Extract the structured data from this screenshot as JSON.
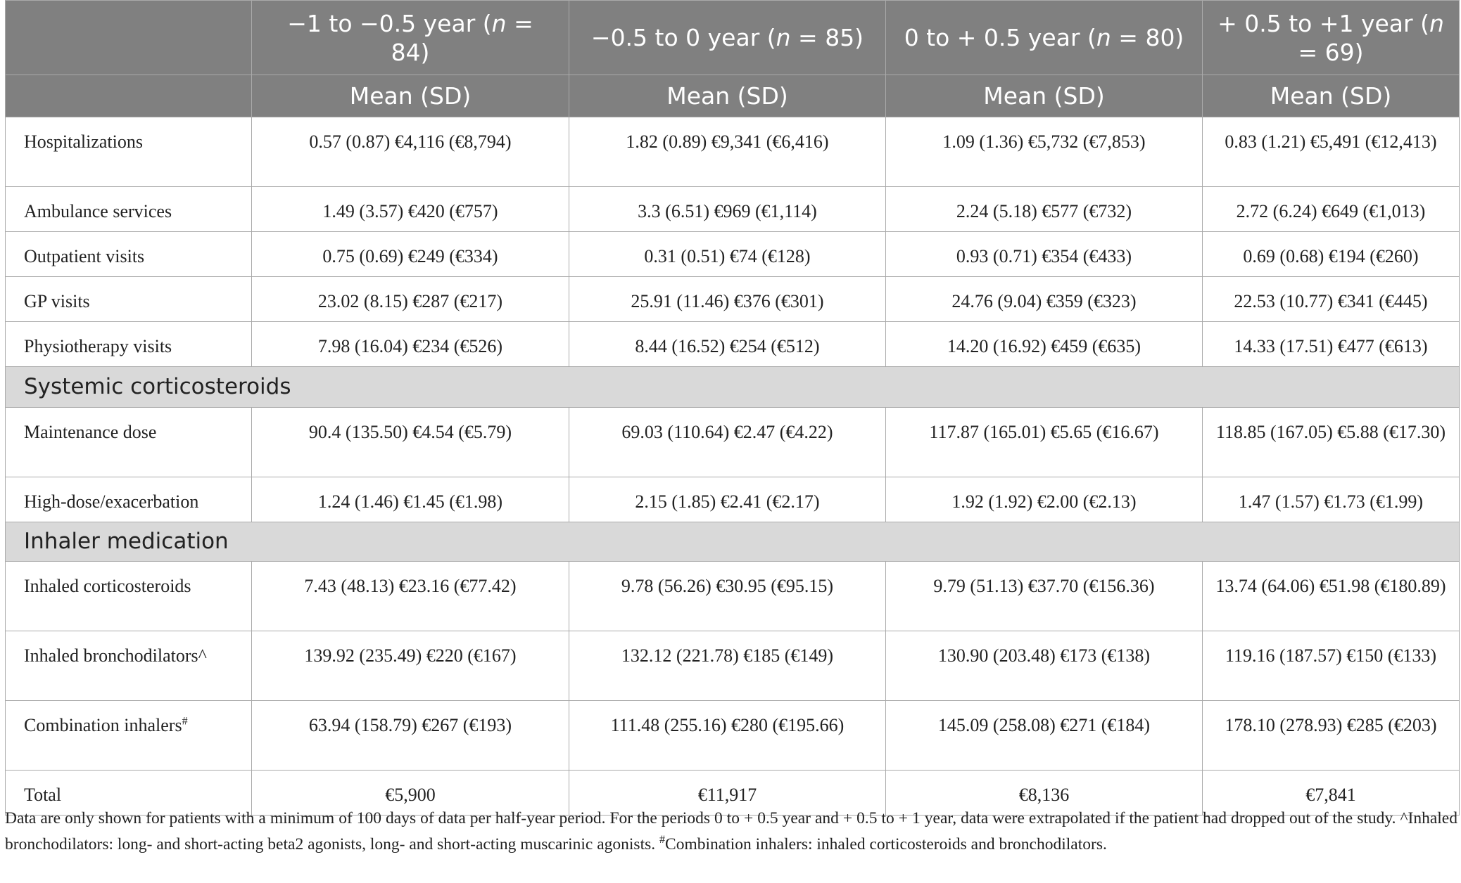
{
  "table": {
    "columns": [
      {
        "heading": [
          "−1 to −0.5 year (",
          "n",
          " = 84)"
        ],
        "sub": "Mean (SD)"
      },
      {
        "heading": [
          "−0.5 to 0 year (",
          "n",
          " = 85)"
        ],
        "sub": "Mean (SD)"
      },
      {
        "heading": [
          "0 to + 0.5 year (",
          "n",
          " = 80)"
        ],
        "sub": "Mean (SD)"
      },
      {
        "heading": [
          "+ 0.5 to +1 year (",
          "n",
          " = 69)"
        ],
        "sub": "Mean (SD)"
      }
    ],
    "rows": [
      {
        "label": "Hospitalizations",
        "cells": [
          "0.57 (0.87) €4,116 (€8,794)",
          "1.82 (0.89) €9,341 (€6,416)",
          "1.09 (1.36) €5,732 (€7,853)",
          "0.83 (1.21) €5,491 (€12,413)"
        ]
      },
      {
        "label": "Ambulance services",
        "cells": [
          "1.49 (3.57) €420 (€757)",
          "3.3 (6.51) €969 (€1,114)",
          "2.24 (5.18) €577 (€732)",
          "2.72 (6.24) €649 (€1,013)"
        ]
      },
      {
        "label": "Outpatient visits",
        "cells": [
          "0.75 (0.69) €249 (€334)",
          "0.31 (0.51) €74 (€128)",
          "0.93 (0.71) €354 (€433)",
          "0.69 (0.68) €194 (€260)"
        ]
      },
      {
        "label": "GP visits",
        "cells": [
          "23.02 (8.15) €287 (€217)",
          "25.91 (11.46) €376 (€301)",
          "24.76 (9.04) €359 (€323)",
          "22.53 (10.77) €341 (€445)"
        ]
      },
      {
        "label": "Physiotherapy visits",
        "cells": [
          "7.98 (16.04) €234 (€526)",
          "8.44 (16.52) €254 (€512)",
          "14.20 (16.92) €459 (€635)",
          "14.33 (17.51) €477 (€613)"
        ]
      },
      {
        "section": "Systemic corticosteroids"
      },
      {
        "label": "Maintenance dose",
        "cells": [
          "90.4 (135.50) €4.54 (€5.79)",
          "69.03 (110.64) €2.47 (€4.22)",
          "117.87 (165.01) €5.65 (€16.67)",
          "118.85 (167.05) €5.88 (€17.30)"
        ]
      },
      {
        "label": "High-dose/exacerbation",
        "cells": [
          "1.24 (1.46) €1.45 (€1.98)",
          "2.15 (1.85) €2.41 (€2.17)",
          "1.92 (1.92) €2.00 (€2.13)",
          "1.47 (1.57) €1.73 (€1.99)"
        ]
      },
      {
        "section": "Inhaler medication"
      },
      {
        "label": "Inhaled corticosteroids",
        "cells": [
          "7.43 (48.13) €23.16 (€77.42)",
          "9.78 (56.26) €30.95 (€95.15)",
          "9.79 (51.13) €37.70 (€156.36)",
          "13.74 (64.06) €51.98 (€180.89)"
        ]
      },
      {
        "label": "Inhaled bronchodilators^",
        "cells": [
          "139.92 (235.49) €220 (€167)",
          "132.12 (221.78) €185 (€149)",
          "130.90 (203.48) €173 (€138)",
          "119.16 (187.57) €150 (€133)"
        ]
      },
      {
        "label": "Combination inhalers",
        "sup": "#",
        "cells": [
          "63.94 (158.79) €267 (€193)",
          "111.48 (255.16) €280 (€195.66)",
          "145.09 (258.08) €271 (€184)",
          "178.10 (278.93) €285 (€203)"
        ]
      },
      {
        "label": "Total",
        "cells": [
          "€5,900",
          "€11,917",
          "€8,136",
          "€7,841"
        ]
      }
    ]
  },
  "footnote": [
    "Data are only shown for patients with a minimum of 100 days of data per half-year period. For the periods 0 to + 0.5 year and + 0.5 to + 1 year, data were extrapolated if the patient had dropped out of the study. ^Inhaled bronchodilators: long- and short-acting beta2 agonists, long- and short-acting muscarinic agonists. ",
    "#",
    "Combination inhalers: inhaled corticosteroids and bronchodilators."
  ]
}
